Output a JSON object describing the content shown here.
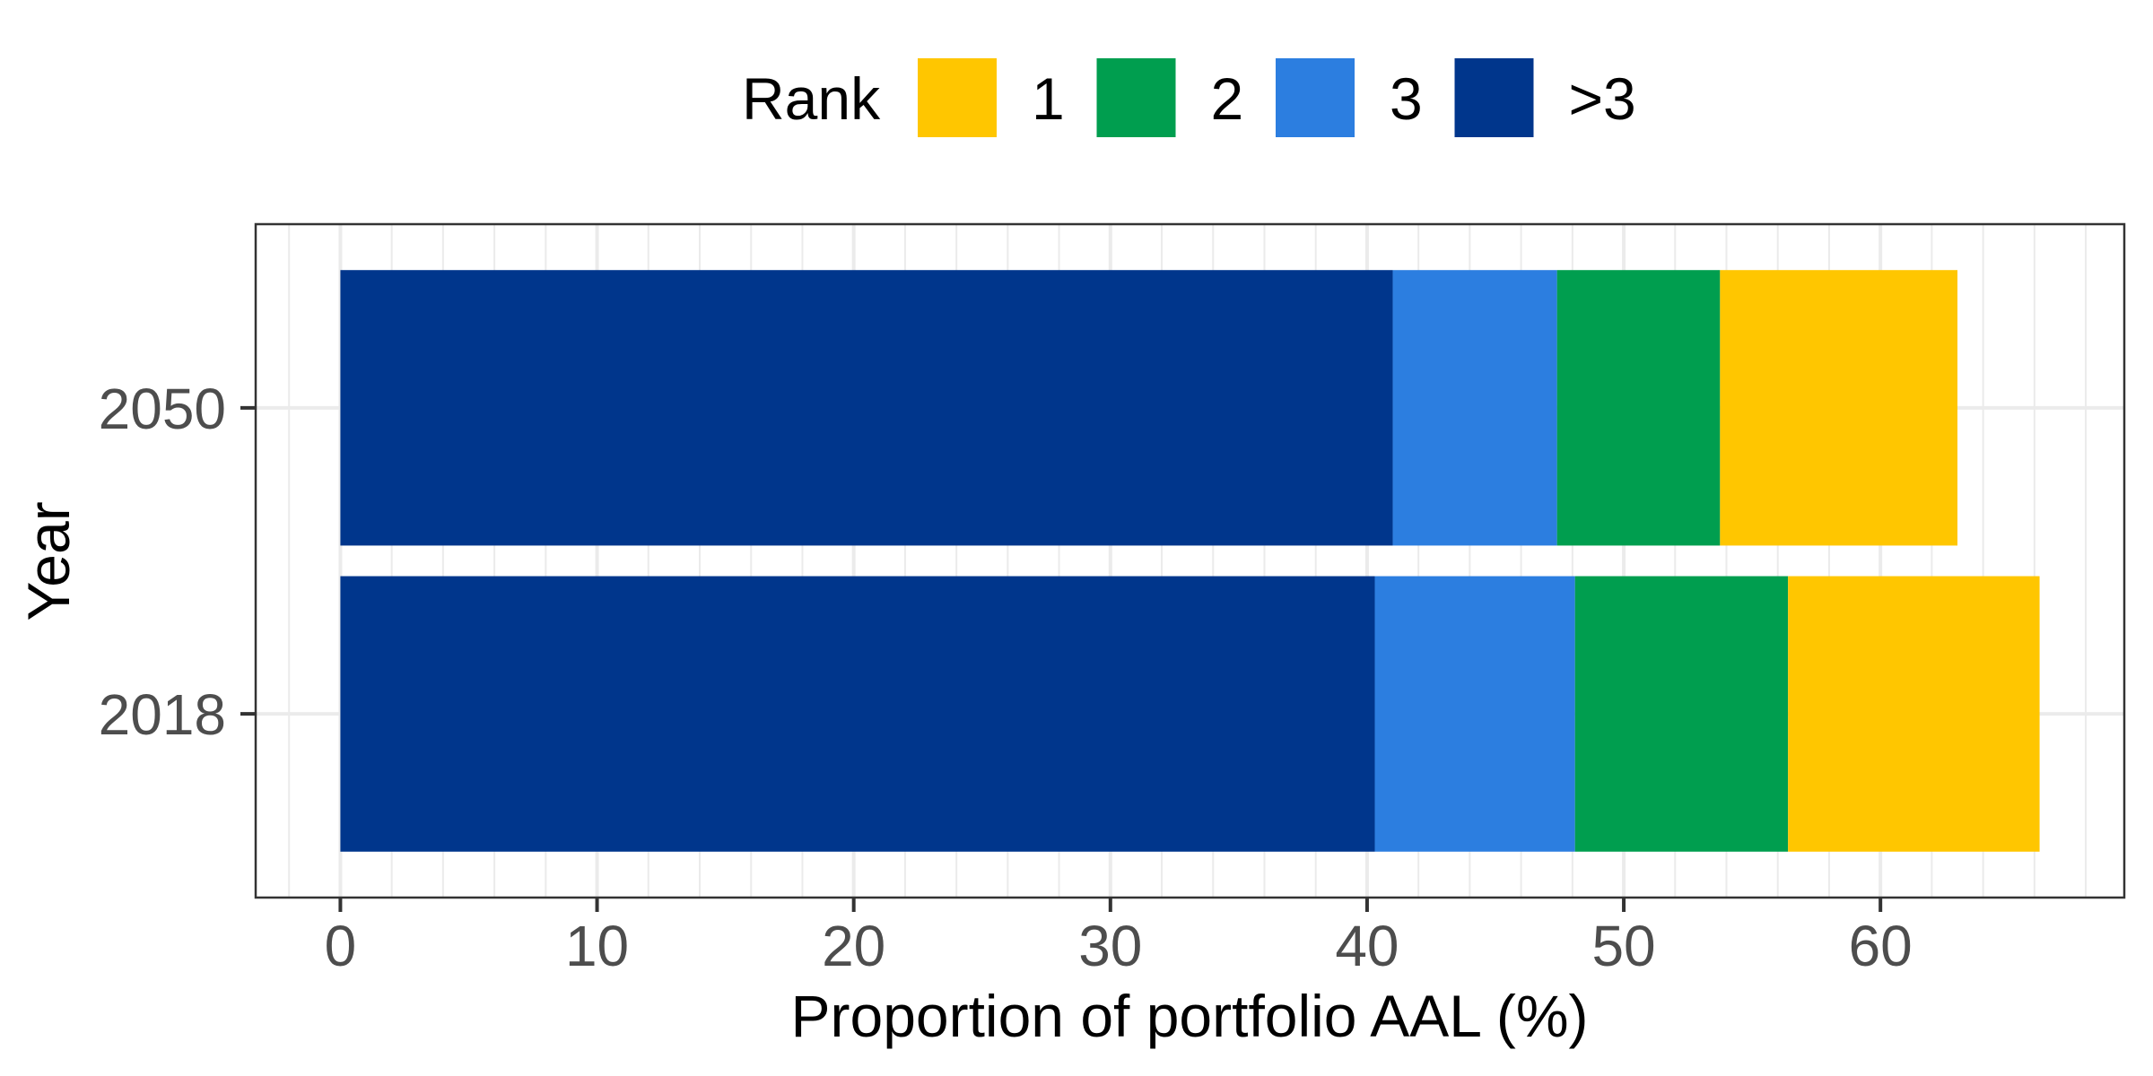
{
  "chart_data": {
    "type": "bar",
    "orientation": "horizontal",
    "stacked": true,
    "title": "",
    "xlabel": "Proportion of portfolio AAL (%)",
    "ylabel": "Year",
    "categories": [
      "2018",
      "2050"
    ],
    "xlim": [
      -3.3,
      69.5
    ],
    "x_ticks": [
      0,
      10,
      20,
      30,
      40,
      50,
      60
    ],
    "x_tick_labels": [
      "0",
      "10",
      "20",
      "30",
      "40",
      "50",
      "60"
    ],
    "x_minor_gridlines_every": 2,
    "grid": true,
    "series": [
      {
        "name": ">3",
        "color": "#00368C",
        "values": [
          40.3,
          41.0
        ]
      },
      {
        "name": "3",
        "color": "#2C7EE0",
        "values": [
          7.8,
          6.4
        ]
      },
      {
        "name": "2",
        "color": "#009E4F",
        "values": [
          8.3,
          6.35
        ]
      },
      {
        "name": "1",
        "color": "#FFC600",
        "values": [
          9.8,
          9.25
        ]
      }
    ],
    "legend": {
      "title": "Rank",
      "position": "top",
      "entries": [
        {
          "label": "1",
          "color": "#FFC600"
        },
        {
          "label": "2",
          "color": "#009E4F"
        },
        {
          "label": "3",
          "color": "#2C7EE0"
        },
        {
          "label": ">3",
          "color": "#00368C"
        }
      ]
    }
  }
}
